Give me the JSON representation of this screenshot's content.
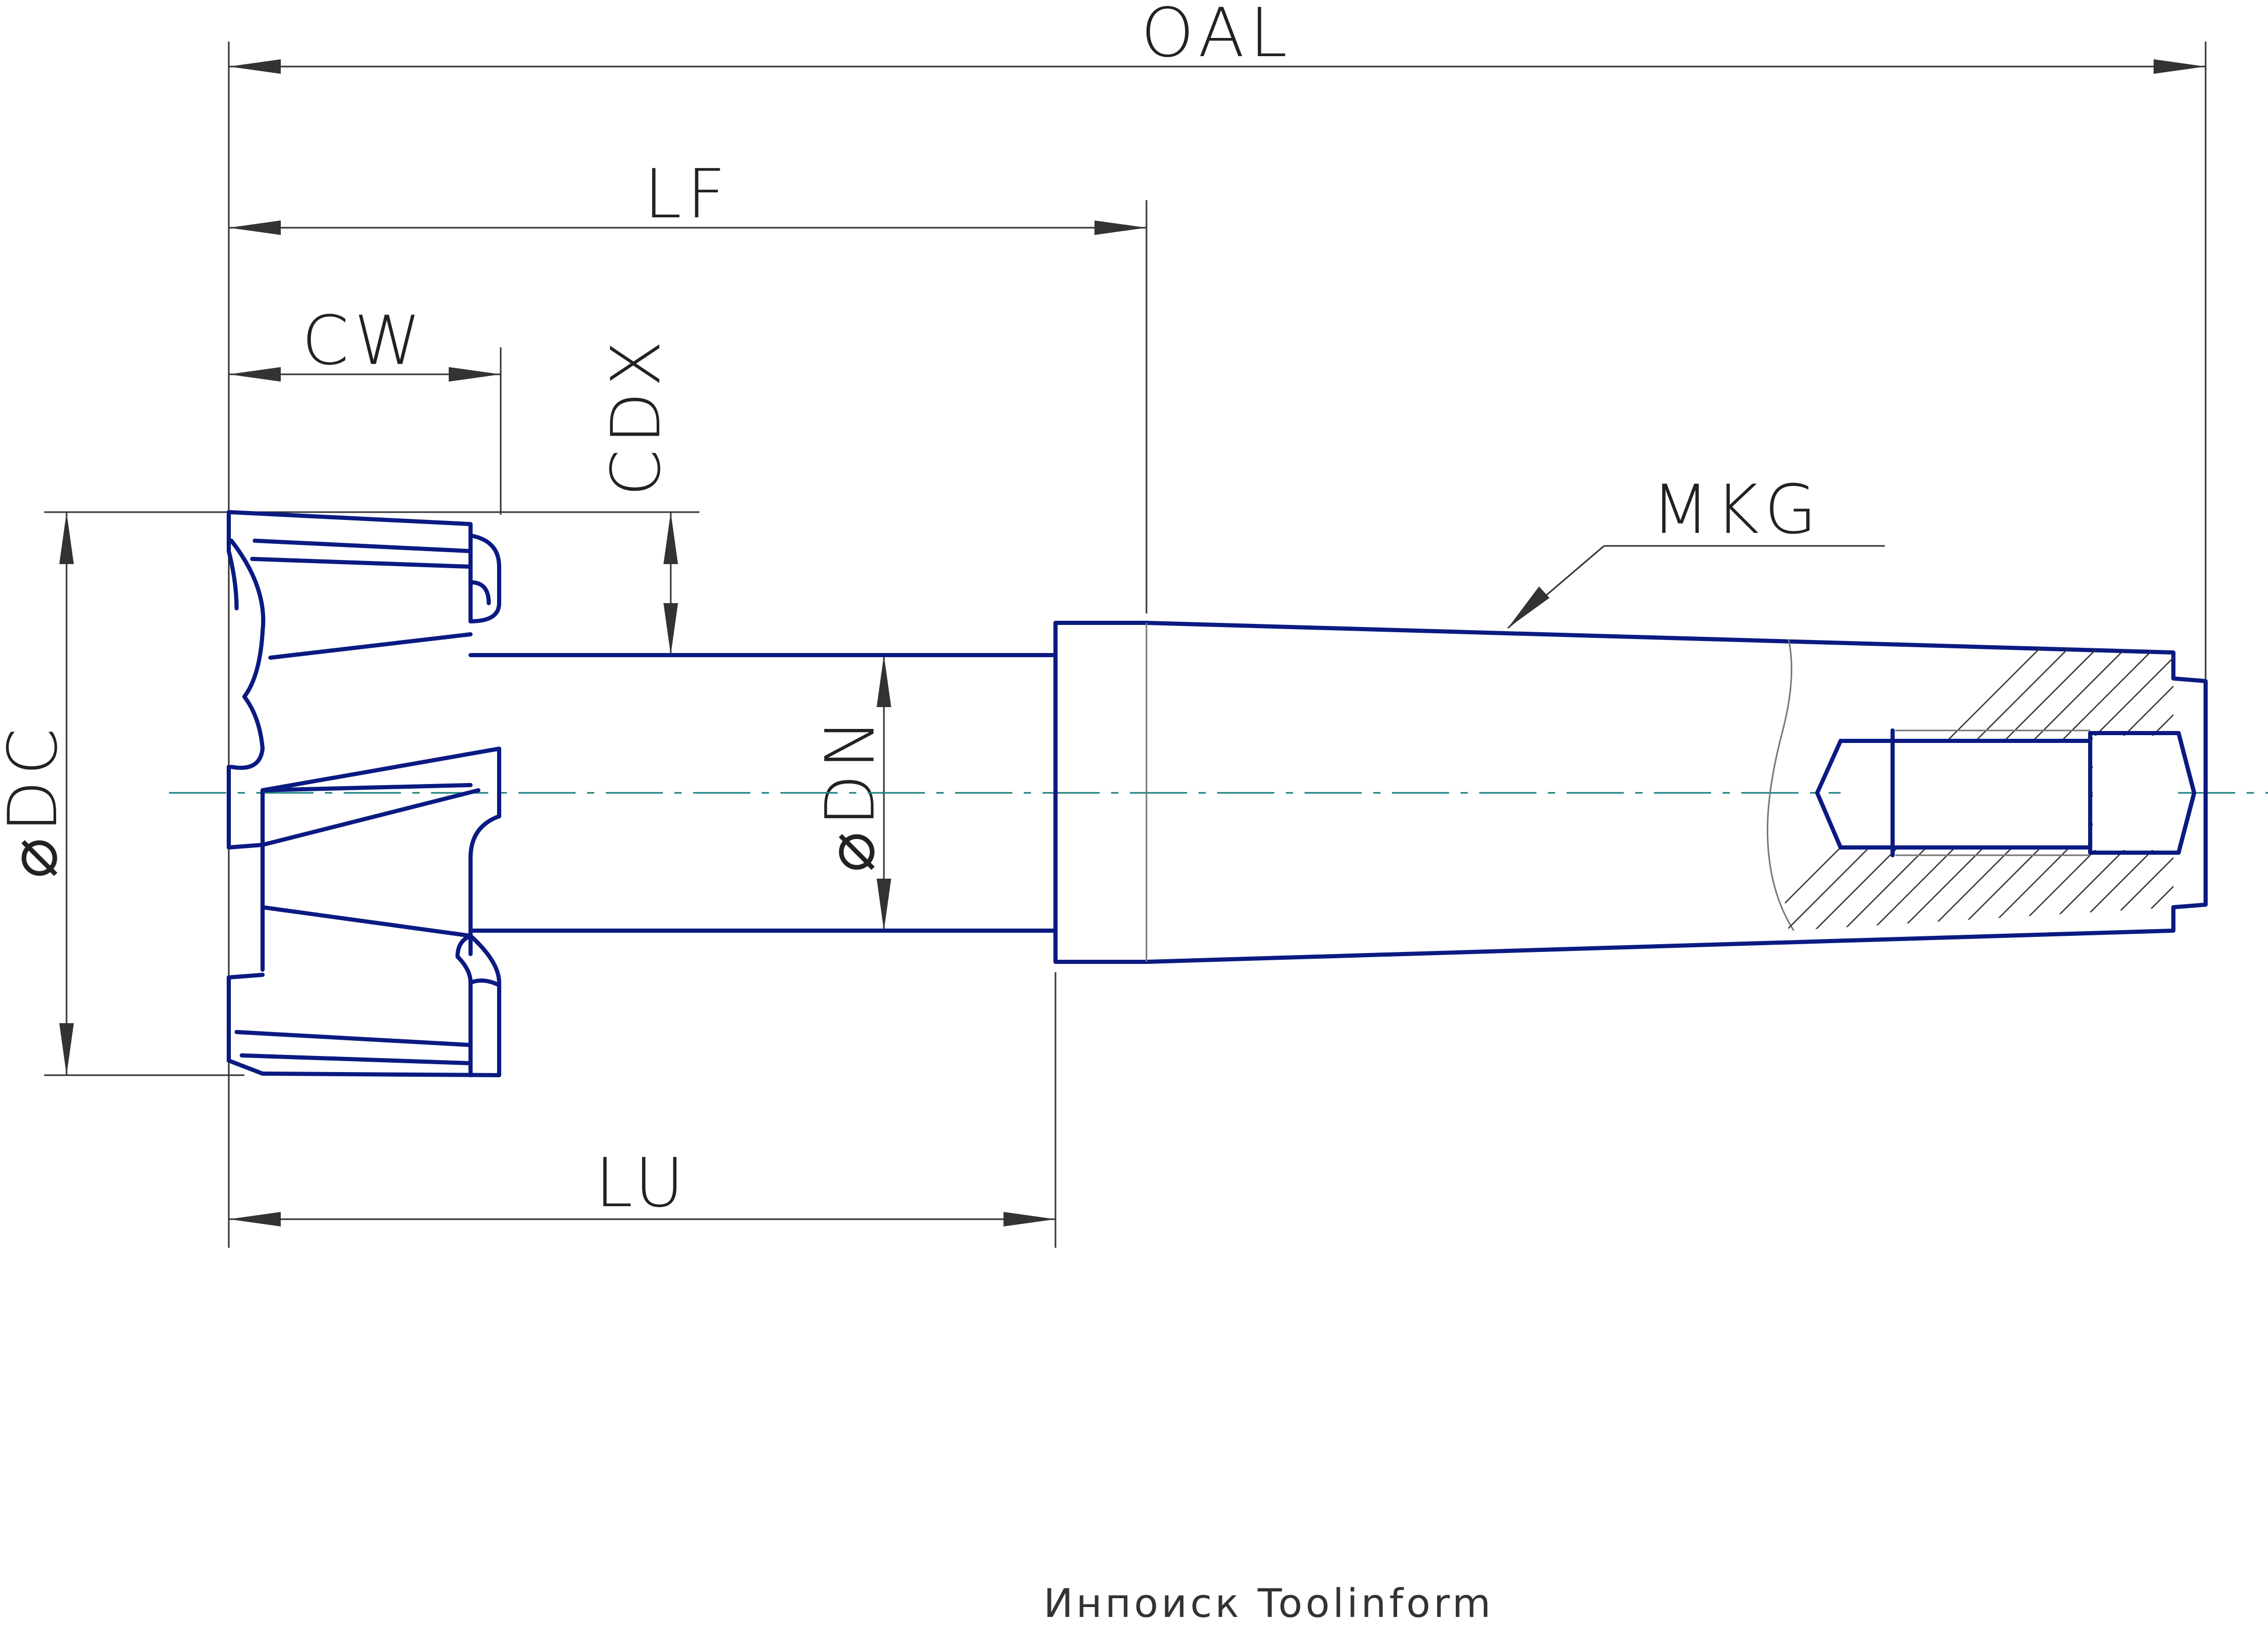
{
  "dimensions": {
    "oal": "OAL",
    "lf": "LF",
    "cw": "CW",
    "cdx": "CDX",
    "mkg": "MKG",
    "dc": "⌀DC",
    "dn": "⌀DN",
    "lu": "LU"
  },
  "footer": {
    "brand": "Инпоиск Toolinform"
  },
  "colors": {
    "outline": "#0b1a82",
    "axis": "#1a7f7f",
    "dimension": "#333333"
  }
}
